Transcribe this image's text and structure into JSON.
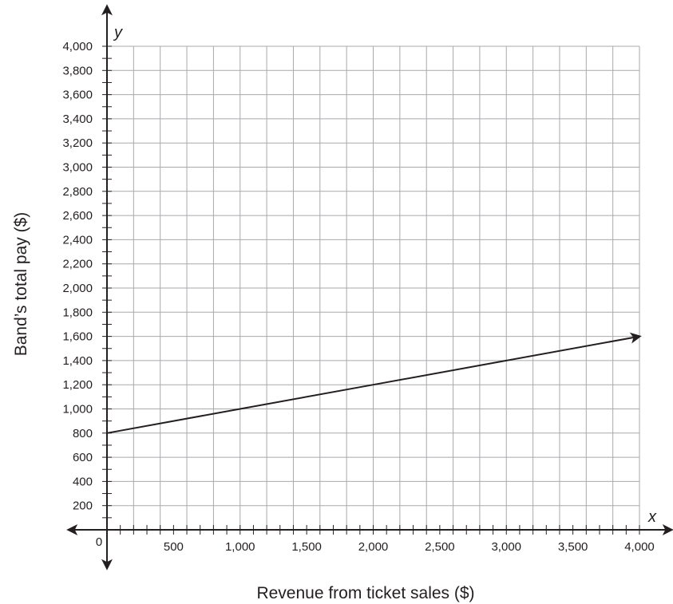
{
  "chart_data": {
    "type": "line",
    "title": "",
    "xlabel": "Revenue from ticket sales ($)",
    "ylabel": "Band’s total pay ($)",
    "x_axis_variable": "x",
    "y_axis_variable": "y",
    "origin_label": "0",
    "xlim": [
      0,
      4000
    ],
    "ylim": [
      0,
      4000
    ],
    "x_grid_step": 200,
    "y_grid_step": 200,
    "x_tick_labels": [
      {
        "value": 500,
        "label": "500"
      },
      {
        "value": 1000,
        "label": "1,000"
      },
      {
        "value": 1500,
        "label": "1,500"
      },
      {
        "value": 2000,
        "label": "2,000"
      },
      {
        "value": 2500,
        "label": "2,500"
      },
      {
        "value": 3000,
        "label": "3,000"
      },
      {
        "value": 3500,
        "label": "3,500"
      },
      {
        "value": 4000,
        "label": "4,000"
      }
    ],
    "y_tick_labels": [
      {
        "value": 200,
        "label": "200"
      },
      {
        "value": 400,
        "label": "400"
      },
      {
        "value": 600,
        "label": "600"
      },
      {
        "value": 800,
        "label": "800"
      },
      {
        "value": 1000,
        "label": "1,000"
      },
      {
        "value": 1200,
        "label": "1,200"
      },
      {
        "value": 1400,
        "label": "1,400"
      },
      {
        "value": 1600,
        "label": "1,600"
      },
      {
        "value": 1800,
        "label": "1,800"
      },
      {
        "value": 2000,
        "label": "2,000"
      },
      {
        "value": 2200,
        "label": "2,200"
      },
      {
        "value": 2400,
        "label": "2,400"
      },
      {
        "value": 2600,
        "label": "2,600"
      },
      {
        "value": 2800,
        "label": "2,800"
      },
      {
        "value": 3000,
        "label": "3,000"
      },
      {
        "value": 3200,
        "label": "3,200"
      },
      {
        "value": 3400,
        "label": "3,400"
      },
      {
        "value": 3600,
        "label": "3,600"
      },
      {
        "value": 3800,
        "label": "3,800"
      },
      {
        "value": 4000,
        "label": "4,000"
      }
    ],
    "grid": true,
    "series": [
      {
        "points": [
          {
            "x": 0,
            "y": 800
          },
          {
            "x": 1000,
            "y": 1000
          },
          {
            "x": 2000,
            "y": 1200
          },
          {
            "x": 3000,
            "y": 1400
          },
          {
            "x": 4000,
            "y": 1600
          }
        ],
        "arrow_end": true
      }
    ]
  },
  "colors": {
    "grid": "#a7a9ac",
    "axis": "#231f20",
    "line": "#231f20",
    "background": "#ffffff"
  }
}
